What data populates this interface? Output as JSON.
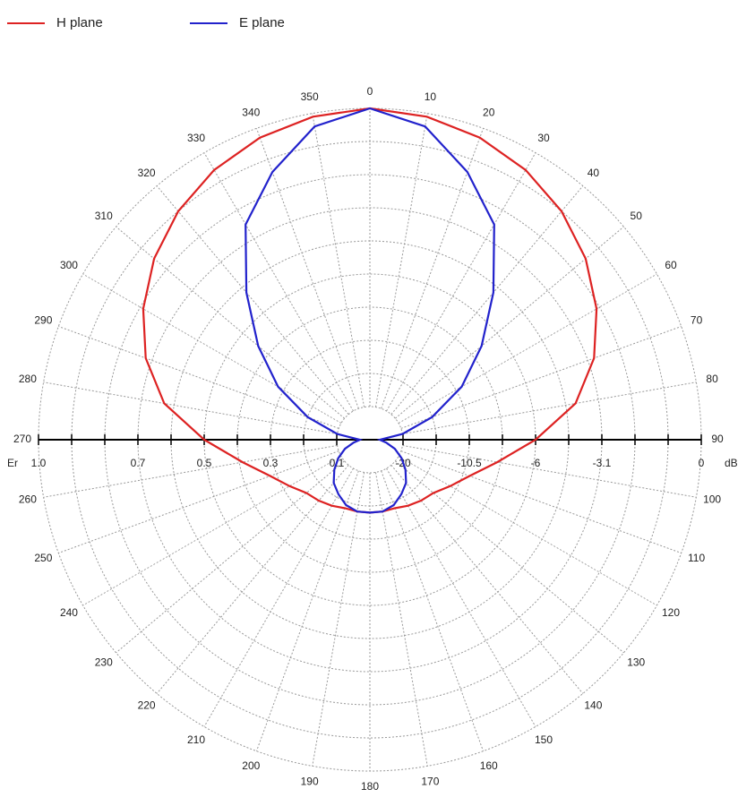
{
  "chart_data": {
    "type": "polar",
    "theta": [
      0,
      10,
      20,
      30,
      40,
      50,
      60,
      70,
      80,
      90,
      100,
      110,
      120,
      130,
      140,
      150,
      160,
      170,
      180,
      190,
      200,
      210,
      220,
      230,
      240,
      250,
      260,
      270,
      280,
      290,
      300,
      310,
      320,
      330,
      340,
      350
    ],
    "series": [
      {
        "name": "H plane",
        "color": "#dd2222",
        "values": [
          1.0,
          0.99,
          0.97,
          0.94,
          0.9,
          0.85,
          0.79,
          0.72,
          0.63,
          0.5,
          0.39,
          0.32,
          0.28,
          0.25,
          0.24,
          0.23,
          0.22,
          0.22,
          0.22,
          0.22,
          0.22,
          0.23,
          0.24,
          0.25,
          0.28,
          0.32,
          0.39,
          0.5,
          0.63,
          0.72,
          0.79,
          0.85,
          0.9,
          0.94,
          0.97,
          0.99
        ]
      },
      {
        "name": "E plane",
        "color": "#2222cc",
        "values": [
          1.0,
          0.96,
          0.86,
          0.75,
          0.58,
          0.44,
          0.32,
          0.2,
          0.1,
          0.03,
          0.05,
          0.08,
          0.11,
          0.14,
          0.17,
          0.19,
          0.21,
          0.22,
          0.22,
          0.22,
          0.21,
          0.19,
          0.17,
          0.14,
          0.11,
          0.08,
          0.05,
          0.03,
          0.1,
          0.2,
          0.32,
          0.44,
          0.58,
          0.75,
          0.86,
          0.96
        ]
      }
    ],
    "rlim": [
      0,
      1
    ],
    "rticks": [
      0.1,
      0.2,
      0.3,
      0.4,
      0.5,
      0.6,
      0.7,
      0.8,
      0.9,
      1.0
    ],
    "left_unit": "Er",
    "left_labels": [
      {
        "value": 1,
        "label": "1.0"
      },
      0.7,
      0.5,
      0.3,
      0.1
    ],
    "right_unit": "dB",
    "right_labels": [
      {
        "value": 0.1,
        "label": "-20"
      },
      {
        "value": 0.3,
        "label": "-10.5"
      },
      {
        "value": 0.5,
        "label": "-6"
      },
      {
        "value": 0.7,
        "label": "-3.1"
      },
      {
        "value": 1,
        "label": "0"
      }
    ],
    "angle_ticks": [
      0,
      10,
      20,
      30,
      40,
      50,
      60,
      70,
      80,
      90,
      100,
      110,
      120,
      130,
      140,
      150,
      160,
      170,
      180,
      190,
      200,
      210,
      220,
      230,
      240,
      250,
      260,
      270,
      280,
      290,
      300,
      310,
      320,
      330,
      340,
      350
    ],
    "grid": true
  }
}
